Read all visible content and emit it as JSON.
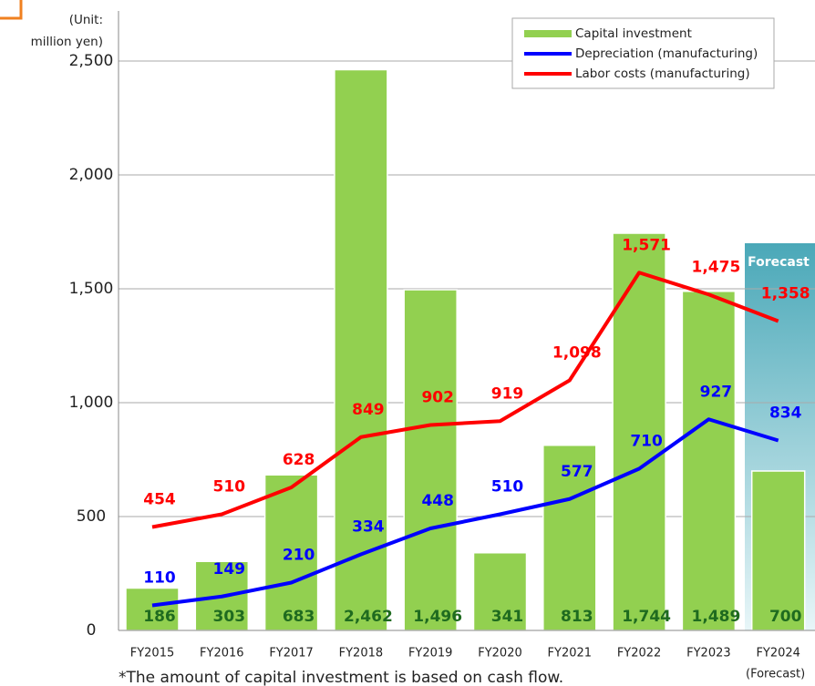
{
  "chart_data": {
    "type": "bar_line",
    "unit_label": [
      "(Unit:",
      "million yen)"
    ],
    "categories": [
      "FY2015",
      "FY2016",
      "FY2017",
      "FY2018",
      "FY2019",
      "FY2020",
      "FY2021",
      "FY2022",
      "FY2023",
      "FY2024"
    ],
    "forecast_category_note": "(Forecast)",
    "forecast_label": "Forecast",
    "footnote": "*The amount of capital investment is based on cash flow.",
    "series": [
      {
        "name": "Capital investment",
        "kind": "bar",
        "color": "#92d050",
        "label_color": "#1f6b1f",
        "values": [
          186,
          303,
          683,
          2462,
          1496,
          341,
          813,
          1744,
          1489,
          700
        ],
        "value_labels": [
          "186",
          "303",
          "683",
          "2,462",
          "1,496",
          "341",
          "813",
          "1,744",
          "1,489",
          "700"
        ]
      },
      {
        "name": "Depreciation (manufacturing)",
        "kind": "line",
        "color": "#0000ff",
        "label_color": "#0000ff",
        "values": [
          110,
          149,
          210,
          334,
          448,
          510,
          577,
          710,
          927,
          834
        ],
        "value_labels": [
          "110",
          "149",
          "210",
          "334",
          "448",
          "510",
          "577",
          "710",
          "927",
          "834"
        ]
      },
      {
        "name": "Labor costs (manufacturing)",
        "kind": "line",
        "color": "#ff0000",
        "label_color": "#ff0000",
        "values": [
          454,
          510,
          628,
          849,
          902,
          919,
          1098,
          1571,
          1475,
          1358
        ],
        "value_labels": [
          "454",
          "510",
          "628",
          "849",
          "902",
          "919",
          "1,098",
          "1,571",
          "1,475",
          "1,358"
        ]
      }
    ],
    "ylim": [
      0,
      2500
    ],
    "yticks": [
      0,
      500,
      {
        "value": 1000,
        "label": "1,000"
      },
      {
        "value": 1500,
        "label": "1,500"
      },
      {
        "value": 2000,
        "label": "2,000"
      },
      {
        "value": 2500,
        "label": "2,500"
      }
    ],
    "grid": true,
    "legend": "upper right"
  }
}
